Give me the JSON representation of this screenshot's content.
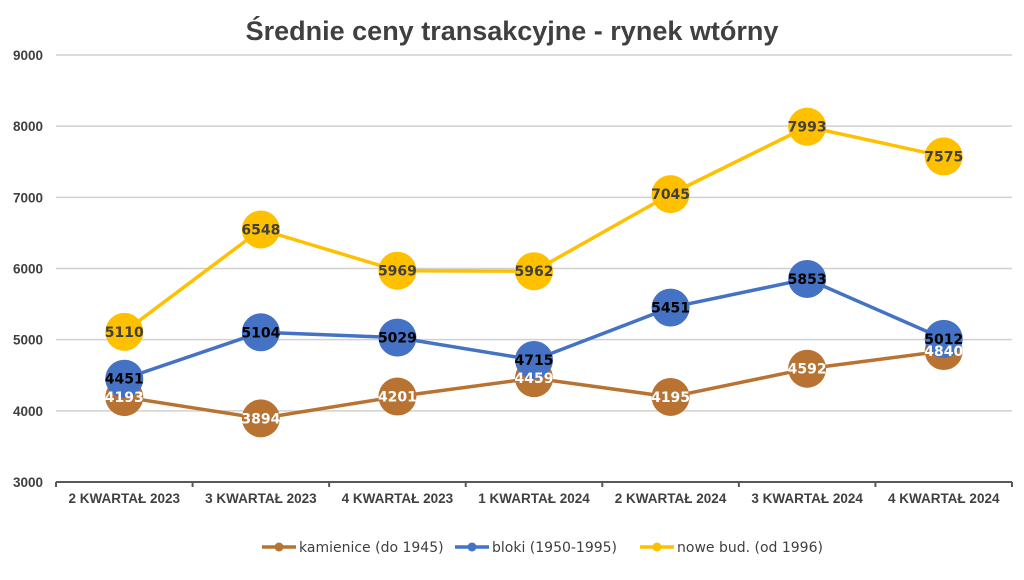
{
  "chart_data": {
    "type": "line",
    "title": "Średnie ceny transakcyjne - rynek wtórny",
    "xlabel": "",
    "ylabel": "",
    "categories": [
      "2 KWARTAŁ 2023",
      "3 KWARTAŁ 2023",
      "4 KWARTAŁ 2023",
      "1 KWARTAŁ 2024",
      "2 KWARTAŁ 2024",
      "3 KWARTAŁ 2024",
      "4 KWARTAŁ 2024"
    ],
    "ylim": [
      3000,
      9000
    ],
    "yticks": [
      3000,
      4000,
      5000,
      6000,
      7000,
      8000,
      9000
    ],
    "grid": true,
    "legend_position": "bottom",
    "series": [
      {
        "name": "kamienice (do 1945)",
        "color": "#B87333",
        "label_color": "#ffffff",
        "values": [
          4193,
          3894,
          4201,
          4459,
          4195,
          4592,
          4840
        ]
      },
      {
        "name": "bloki (1950-1995)",
        "color": "#4472C4",
        "label_color": "#000000",
        "values": [
          4451,
          5104,
          5029,
          4715,
          5451,
          5853,
          5012
        ]
      },
      {
        "name": "nowe bud. (od 1996)",
        "color": "#FFC000",
        "label_color": "#404040",
        "values": [
          5110,
          6548,
          5969,
          5962,
          7045,
          7993,
          7575
        ]
      }
    ]
  }
}
